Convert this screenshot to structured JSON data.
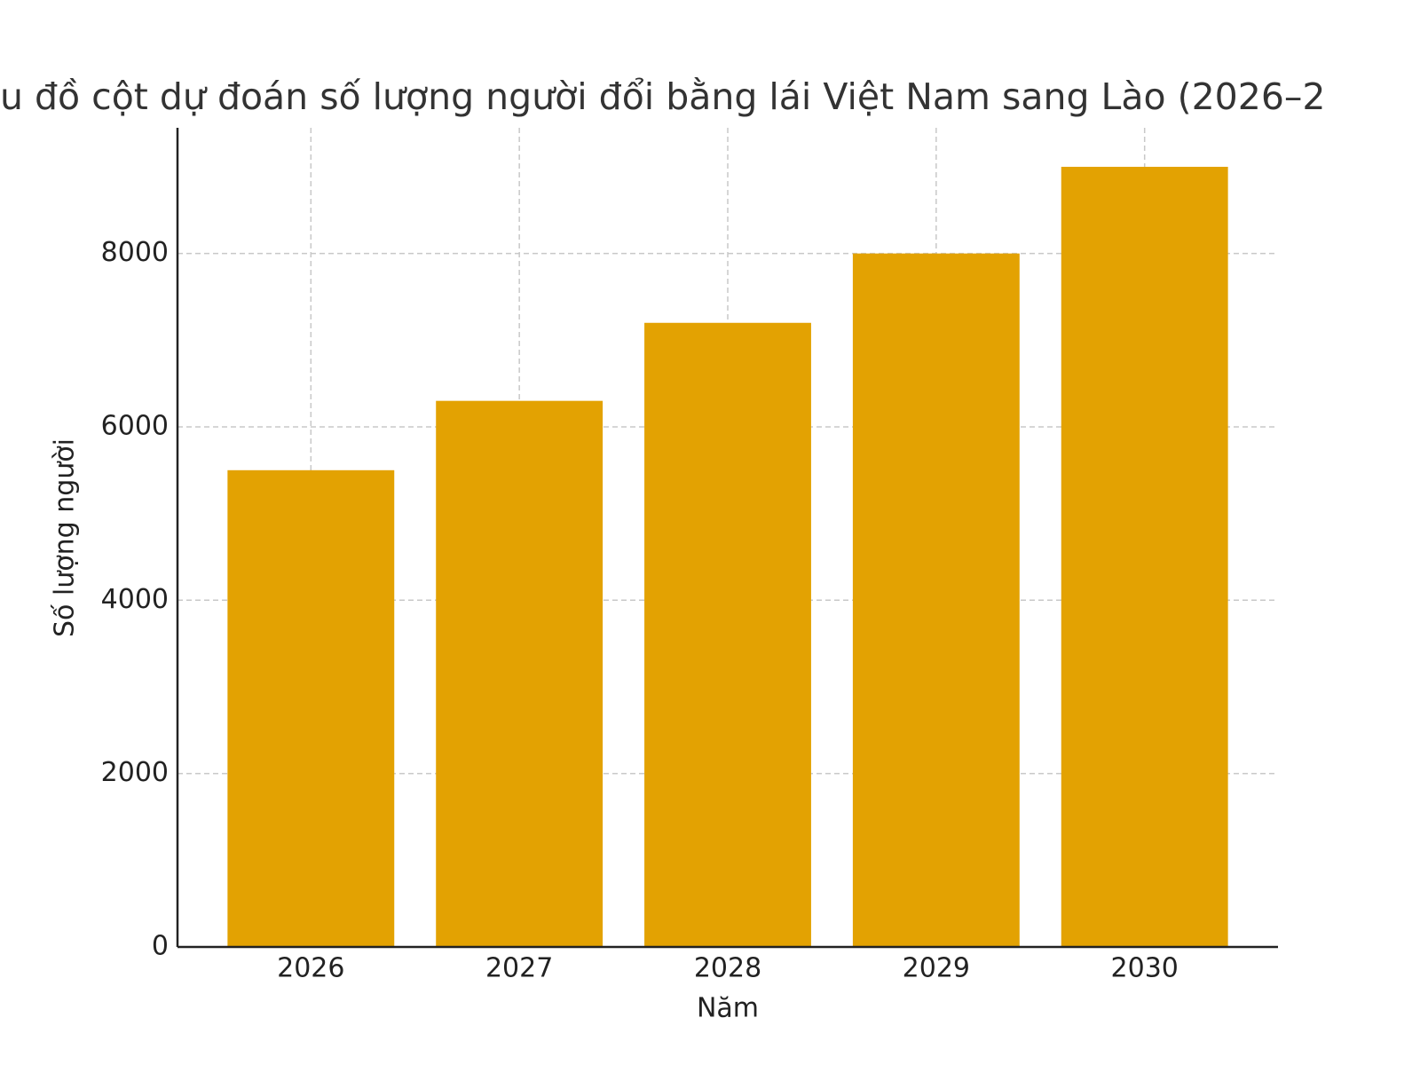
{
  "chart_data": {
    "type": "bar",
    "title": "u đồ cột dự đoán số lượng người đổi bằng lái Việt Nam sang Lào (2026–2",
    "x_label": "Năm",
    "y_label": "Số lượng người",
    "categories": [
      "2026",
      "2027",
      "2028",
      "2029",
      "2030"
    ],
    "values": [
      5500,
      6300,
      7200,
      8000,
      9000
    ],
    "color": "#e3a202",
    "ylim": [
      0,
      9450
    ],
    "yticks": [
      0,
      2000,
      4000,
      6000,
      8000
    ],
    "grid": true
  }
}
